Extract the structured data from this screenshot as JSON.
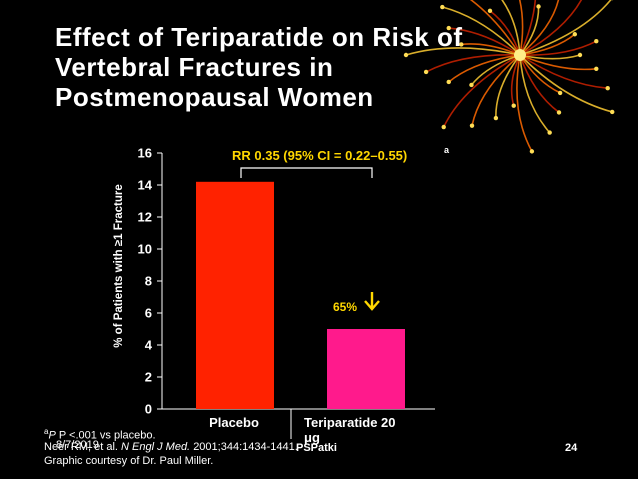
{
  "slide": {
    "title_lines": [
      "Effect of Teriparatide on Risk of",
      "Vertebral Fractures in",
      "Postmenopausal Women"
    ],
    "footnote_sup": "a",
    "footnote_1": "P <.001 vs placebo.",
    "footnote_2_authors": "Neer RM, et al.",
    "footnote_2_journal": "N Engl J Med.",
    "footnote_2_ref": "2001;344:1434-1441.",
    "footnote_3": "Graphic courtesy of Dr. Paul Miller.",
    "date": "8/7/2019",
    "author": "PSPatki",
    "page_number": "24"
  },
  "chart_data": {
    "type": "bar",
    "ylabel": "% of Patients with ≥1 Fracture",
    "ylim": [
      0,
      16
    ],
    "yticks": [
      0,
      2,
      4,
      6,
      8,
      10,
      12,
      14,
      16
    ],
    "categories": [
      "Placebo",
      "Teriparatide 20 μg"
    ],
    "category_lines": [
      [
        "Placebo"
      ],
      [
        "Teriparatide 20",
        "μg"
      ]
    ],
    "values": [
      14.2,
      5.0
    ],
    "bar_colors": [
      "#ff2200",
      "#ff1a8c"
    ],
    "annotation_rr": "RR 0.35 (95% CI = 0.22–0.55)",
    "annotation_rr_sup": "a",
    "annotation_reduction": "65%",
    "reduction_arrow_icon": "down-arrow-icon"
  }
}
